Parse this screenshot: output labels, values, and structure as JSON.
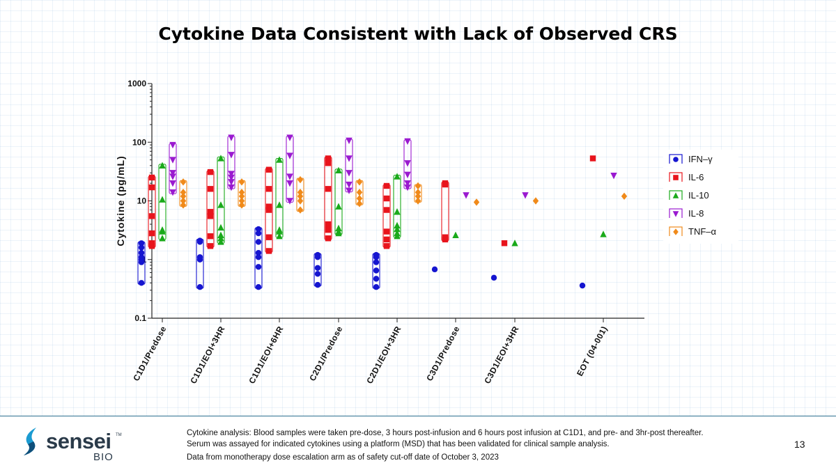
{
  "slide": {
    "title": "Cytokine Data Consistent with Lack of Observed CRS",
    "page_number": "13"
  },
  "footnotes": {
    "line1": "Cytokine analysis: Blood samples were taken pre-dose, 3 hours post-infusion and 6 hours post infusion at C1D1, and pre- and 3hr-post thereafter.",
    "line2": "Serum was assayed for indicated cytokines using a platform (MSD) that has been validated for clinical sample analysis.",
    "line3": "Data from monotherapy dose escalation arm as of safety cut-off date of October 3, 2023"
  },
  "logo": {
    "name": "sensei",
    "tm": "TM",
    "sub": "BIO",
    "icon": "sensei-leaf-icon"
  },
  "chart_data": {
    "type": "scatter",
    "title": "",
    "xlabel": "",
    "ylabel": "Cytokine (pg/mL)",
    "yscale": "log",
    "ylim": [
      0.1,
      1000
    ],
    "yticks": [
      "0.1",
      "1",
      "10",
      "100",
      "1000"
    ],
    "categories": [
      "C1D1/Predose",
      "C1D1/EOI+3HR",
      "C1D1/EOI+6HR",
      "C2D1/Predose",
      "C2D1/EOI+3HR",
      "C3D1/Predose",
      "C3D1/EOI+3HR",
      "EOT (04-001)"
    ],
    "legend_position": "right",
    "boxes_show_range": true,
    "series": [
      {
        "name": "IFN–γ",
        "color": "#1515d0",
        "marker": "circle",
        "values": [
          [
            0.4,
            0.9,
            1.0,
            1.1,
            1.3,
            1.6,
            1.9
          ],
          [
            0.34,
            1.0,
            1.1,
            2.0,
            2.1
          ],
          [
            0.34,
            0.75,
            1.1,
            1.3,
            2.0,
            2.8,
            3.3
          ],
          [
            0.37,
            0.57,
            0.72,
            1.1,
            1.2
          ],
          [
            0.34,
            0.47,
            0.65,
            0.9,
            1.1,
            1.2
          ],
          [
            0.68
          ],
          [
            0.49
          ],
          [
            0.36
          ]
        ]
      },
      {
        "name": "IL-6",
        "color": "#e8141c",
        "marker": "square",
        "values": [
          [
            1.7,
            1.9,
            2.8,
            5.5,
            17,
            25
          ],
          [
            1.7,
            2.5,
            5.5,
            6.5,
            16,
            31
          ],
          [
            1.4,
            2.4,
            7.0,
            8.0,
            16,
            34
          ],
          [
            2.3,
            3.2,
            4.0,
            16,
            44,
            53
          ],
          [
            1.7,
            2.2,
            3.0,
            7.0,
            11,
            18
          ],
          [
            2.2,
            2.4,
            19,
            20
          ],
          [
            1.9
          ],
          [
            53
          ]
        ]
      },
      {
        "name": "IL-10",
        "color": "#1aaa1a",
        "marker": "triangle-up",
        "values": [
          [
            2.3,
            3.0,
            3.2,
            10.5,
            40
          ],
          [
            2.0,
            2.3,
            2.6,
            3.5,
            8.5,
            53
          ],
          [
            2.5,
            3.0,
            3.2,
            8.5,
            50
          ],
          [
            2.8,
            3.0,
            3.4,
            8.0,
            33
          ],
          [
            2.5,
            2.8,
            3.3,
            3.8,
            6.5,
            26
          ],
          [
            2.6
          ],
          [
            1.9
          ],
          [
            2.7
          ]
        ]
      },
      {
        "name": "IL-8",
        "color": "#9a1ad0",
        "marker": "triangle-down",
        "values": [
          [
            14,
            20,
            26,
            30,
            50,
            90
          ],
          [
            17,
            21,
            25,
            29,
            61,
            120
          ],
          [
            10,
            20,
            26,
            59,
            120
          ],
          [
            15,
            19,
            30,
            53,
            107
          ],
          [
            17,
            20,
            28,
            44,
            104
          ],
          [
            12.5
          ],
          [
            12.5
          ],
          [
            27
          ]
        ]
      },
      {
        "name": "TNF–α",
        "color": "#f08a1a",
        "marker": "diamond",
        "values": [
          [
            8.5,
            10,
            12,
            14,
            21
          ],
          [
            8.5,
            10,
            12,
            14,
            21
          ],
          [
            7.0,
            10,
            12,
            14,
            23
          ],
          [
            9.0,
            11,
            14,
            21
          ],
          [
            10,
            12,
            14,
            18
          ],
          [
            9.5
          ],
          [
            10
          ],
          [
            12
          ]
        ]
      }
    ]
  }
}
